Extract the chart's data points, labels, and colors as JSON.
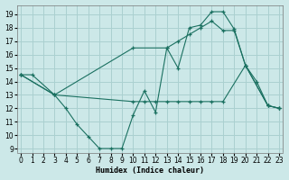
{
  "xlabel": "Humidex (Indice chaleur)",
  "bg_color": "#cce8e8",
  "grid_color": "#aad0d0",
  "line_color": "#1a7060",
  "xlim": [
    -0.3,
    23.3
  ],
  "ylim": [
    8.7,
    19.7
  ],
  "yticks": [
    9,
    10,
    11,
    12,
    13,
    14,
    15,
    16,
    17,
    18,
    19
  ],
  "xticks": [
    0,
    1,
    2,
    3,
    4,
    5,
    6,
    7,
    8,
    9,
    10,
    11,
    12,
    13,
    14,
    15,
    16,
    17,
    18,
    19,
    20,
    21,
    22,
    23
  ],
  "line1_x": [
    0,
    1,
    3,
    4,
    5,
    6,
    7,
    8,
    9,
    10,
    11,
    12,
    13,
    14,
    15,
    16,
    17,
    18,
    19,
    20,
    21,
    22,
    23
  ],
  "line1_y": [
    14.5,
    14.5,
    13.0,
    12.0,
    10.8,
    9.9,
    9.0,
    9.0,
    9.0,
    11.5,
    13.3,
    11.7,
    16.5,
    15.0,
    18.0,
    18.2,
    19.2,
    19.2,
    17.9,
    15.2,
    14.0,
    12.2,
    12.0
  ],
  "line2_x": [
    0,
    3,
    10,
    11,
    12,
    13,
    14,
    15,
    16,
    17,
    18,
    20,
    22,
    23
  ],
  "line2_y": [
    14.5,
    13.0,
    12.5,
    12.5,
    12.5,
    12.5,
    12.5,
    12.5,
    12.5,
    12.5,
    12.5,
    15.2,
    12.2,
    12.0
  ],
  "line3_x": [
    0,
    3,
    10,
    13,
    14,
    15,
    16,
    17,
    18,
    19,
    20,
    22,
    23
  ],
  "line3_y": [
    14.5,
    13.0,
    16.5,
    16.5,
    17.0,
    17.5,
    18.0,
    18.5,
    17.8,
    17.8,
    15.2,
    12.2,
    12.0
  ]
}
